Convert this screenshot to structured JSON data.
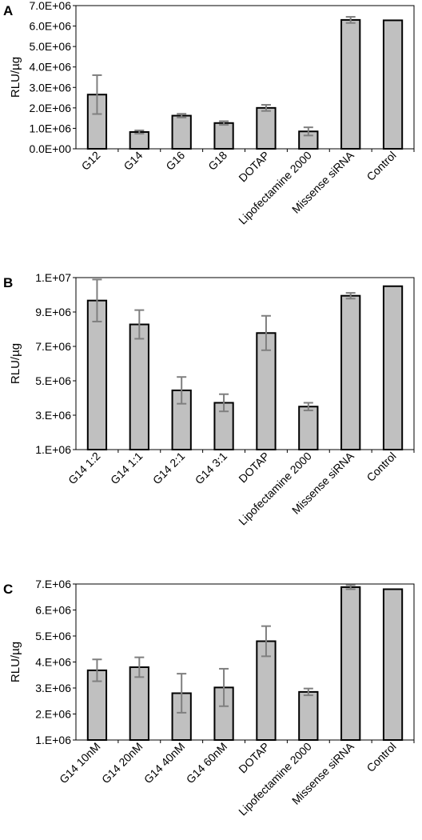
{
  "chart_data": [
    {
      "type": "bar",
      "panel_label": "A",
      "ylabel": "RLU/µg",
      "ylim": [
        0,
        7000000
      ],
      "yticks": [
        "0.0E+00",
        "1.0E+06",
        "2.0E+06",
        "3.0E+06",
        "4.0E+06",
        "5.0E+06",
        "6.0E+06",
        "7.0E+06"
      ],
      "categories": [
        "G12",
        "G14",
        "G16",
        "G18",
        "DOTAP",
        "Lipofectamine 2000",
        "Missense siRNA",
        "Control"
      ],
      "values": [
        2650000,
        820000,
        1620000,
        1260000,
        2000000,
        850000,
        6300000,
        6280000
      ],
      "errors": [
        950000,
        80000,
        90000,
        90000,
        150000,
        200000,
        150000,
        0
      ],
      "bar_color": "#c0c0c0"
    },
    {
      "type": "bar",
      "panel_label": "B",
      "ylabel": "RLU/µg",
      "ylim": [
        1000000,
        10000000
      ],
      "yticks": [
        "1.E+06",
        "3.E+06",
        "5.E+06",
        "7.E+06",
        "9.E+06",
        "1.E+07"
      ],
      "categories": [
        "G14 1:2",
        "G14 1:1",
        "G14 2:1",
        "G14 3:1",
        "DOTAP",
        "Lipofectamine 2000",
        "Missense siRNA",
        "Control"
      ],
      "values": [
        8800000,
        7550000,
        4100000,
        3450000,
        7100000,
        3250000,
        9050000,
        9550000
      ],
      "errors": [
        1100000,
        750000,
        700000,
        450000,
        900000,
        200000,
        150000,
        0
      ],
      "bar_color": "#c0c0c0"
    },
    {
      "type": "bar",
      "panel_label": "C",
      "ylabel": "RLU/µg",
      "ylim": [
        1000000,
        7000000
      ],
      "yticks": [
        "1.E+06",
        "2.E+06",
        "3.E+06",
        "4.E+06",
        "5.E+06",
        "6.E+06",
        "7.E+06"
      ],
      "categories": [
        "G14 10nM",
        "G14 20nM",
        "G14 40nM",
        "G14 60nM",
        "DOTAP",
        "Lipofectamine 2000",
        "Missense siRNA",
        "Control"
      ],
      "values": [
        3680000,
        3800000,
        2800000,
        3020000,
        4800000,
        2850000,
        6880000,
        6800000
      ],
      "errors": [
        420000,
        380000,
        750000,
        720000,
        580000,
        130000,
        80000,
        0
      ],
      "bar_color": "#c0c0c0"
    }
  ]
}
